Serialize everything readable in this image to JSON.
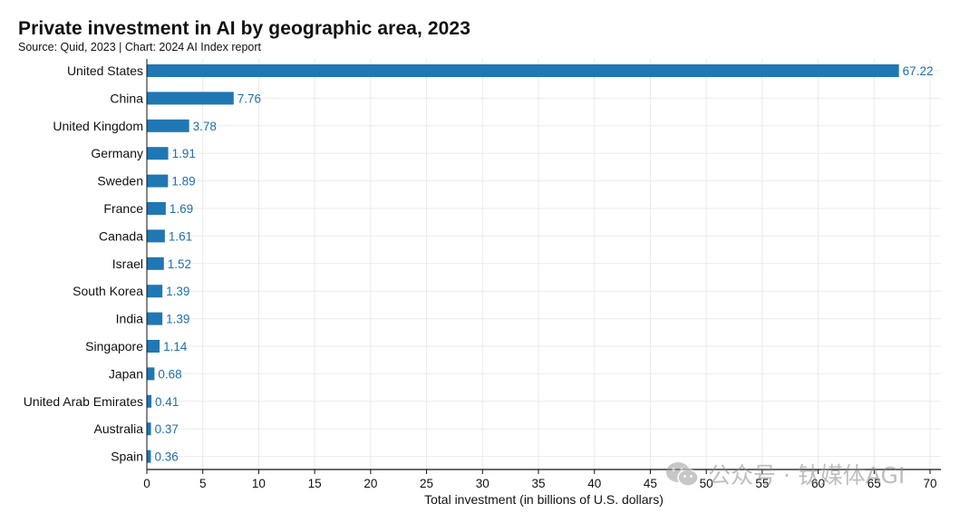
{
  "header": {
    "title": "Private investment in AI by geographic area, 2023",
    "subtitle": "Source: Quid, 2023 | Chart: 2024 AI Index report"
  },
  "colors": {
    "bar": "#1f77b4",
    "value_label": "#1f6fb0",
    "grid": "#ebebeb",
    "axis": "#111111"
  },
  "watermark": {
    "icon": "wechat-icon",
    "text": "公众号 · 钛媒体AGI"
  },
  "chart_data": {
    "type": "bar",
    "orientation": "horizontal",
    "categories": [
      "United States",
      "China",
      "United Kingdom",
      "Germany",
      "Sweden",
      "France",
      "Canada",
      "Israel",
      "South Korea",
      "India",
      "Singapore",
      "Japan",
      "United Arab Emirates",
      "Australia",
      "Spain"
    ],
    "values": [
      67.22,
      7.76,
      3.78,
      1.91,
      1.89,
      1.69,
      1.61,
      1.52,
      1.39,
      1.39,
      1.14,
      0.68,
      0.41,
      0.37,
      0.36
    ],
    "value_labels": [
      "67.22",
      "7.76",
      "3.78",
      "1.91",
      "1.89",
      "1.69",
      "1.61",
      "1.52",
      "1.39",
      "1.39",
      "1.14",
      "0.68",
      "0.41",
      "0.37",
      "0.36"
    ],
    "xlabel": "Total investment (in billions of U.S. dollars)",
    "ylabel": "",
    "xlim": [
      0,
      70
    ],
    "xticks": [
      0,
      5,
      10,
      15,
      20,
      25,
      30,
      35,
      40,
      45,
      50,
      55,
      60,
      65,
      70
    ],
    "grid": true
  }
}
